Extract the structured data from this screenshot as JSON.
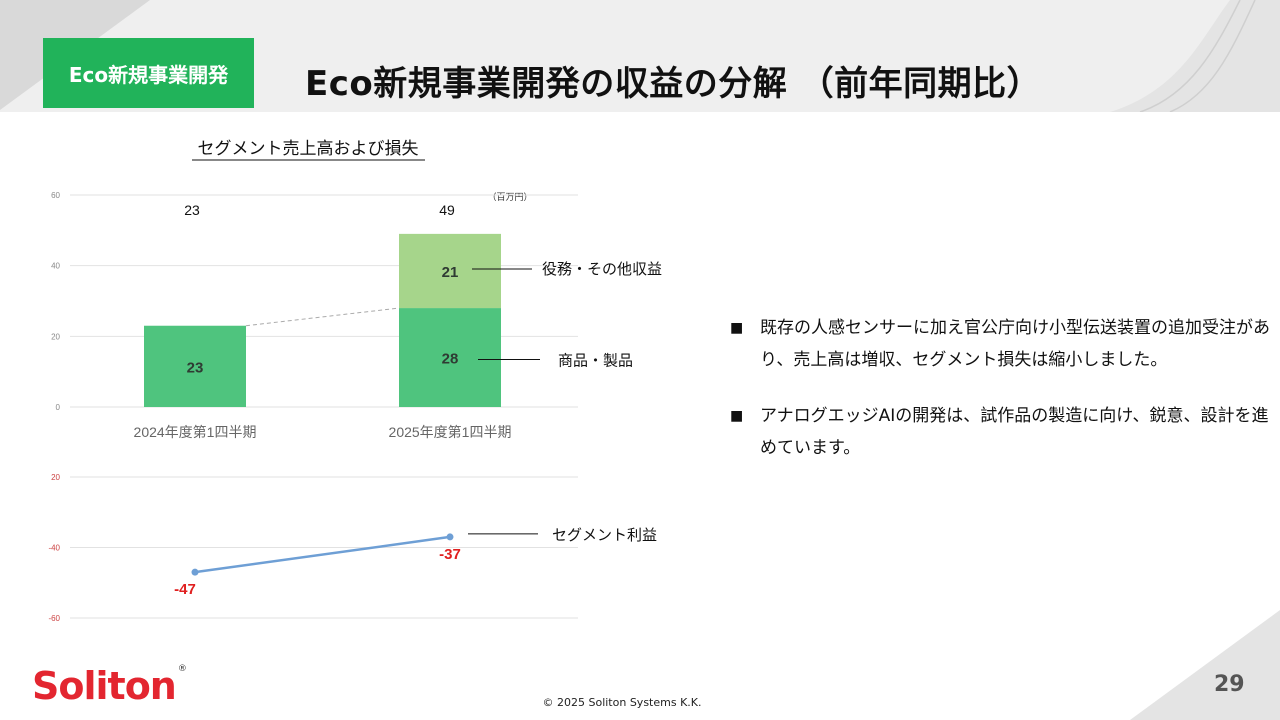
{
  "header": {
    "tag": "Eco新規事業開発",
    "title": "Eco新規事業開発の収益の分解 （前年同期比）"
  },
  "chart_title": "セグメント売上高および損失",
  "unit_label": "（百万円）",
  "colors": {
    "brand_green": "#21b35a",
    "product_bar": "#4fc47e",
    "service_bar": "#a6d58b",
    "line": "#6e9fd5",
    "negative_label": "#e02020",
    "axis_text": "#c44"
  },
  "chart_data": [
    {
      "type": "bar",
      "stacked": true,
      "categories": [
        "2024年度第1四半期",
        "2025年度第1四半期"
      ],
      "series": [
        {
          "name": "商品・製品",
          "values": [
            23,
            28
          ]
        },
        {
          "name": "役務・その他収益",
          "values": [
            0,
            21
          ]
        }
      ],
      "totals": [
        23,
        49
      ],
      "ylim": [
        0,
        60
      ],
      "yticks": [
        0,
        20,
        40,
        60
      ],
      "segment_labels": [
        "23",
        "28",
        "21"
      ],
      "total_labels": [
        "23",
        "49"
      ],
      "grid": true
    },
    {
      "type": "line",
      "categories": [
        "2024年度第1四半期",
        "2025年度第1四半期"
      ],
      "series": [
        {
          "name": "セグメント利益",
          "values": [
            -47,
            -37
          ]
        }
      ],
      "point_labels": [
        "-47",
        "-37"
      ],
      "ylim": [
        -60,
        -20
      ],
      "yticks": [
        "20",
        "-40",
        "-60"
      ],
      "grid": true
    }
  ],
  "bullets": [
    "既存の人感センサーに加え官公庁向け小型伝送装置の追加受注があり、売上高は増収、セグメント損失は縮小しました。",
    "アナログエッジAIの開発は、試作品の製造に向け、鋭意、設計を進めています。"
  ],
  "bullet_mark": "■",
  "logo": {
    "text": "Soliton",
    "registered": "®"
  },
  "footer": "© 2025 Soliton Systems K.K.",
  "page_number": "29"
}
